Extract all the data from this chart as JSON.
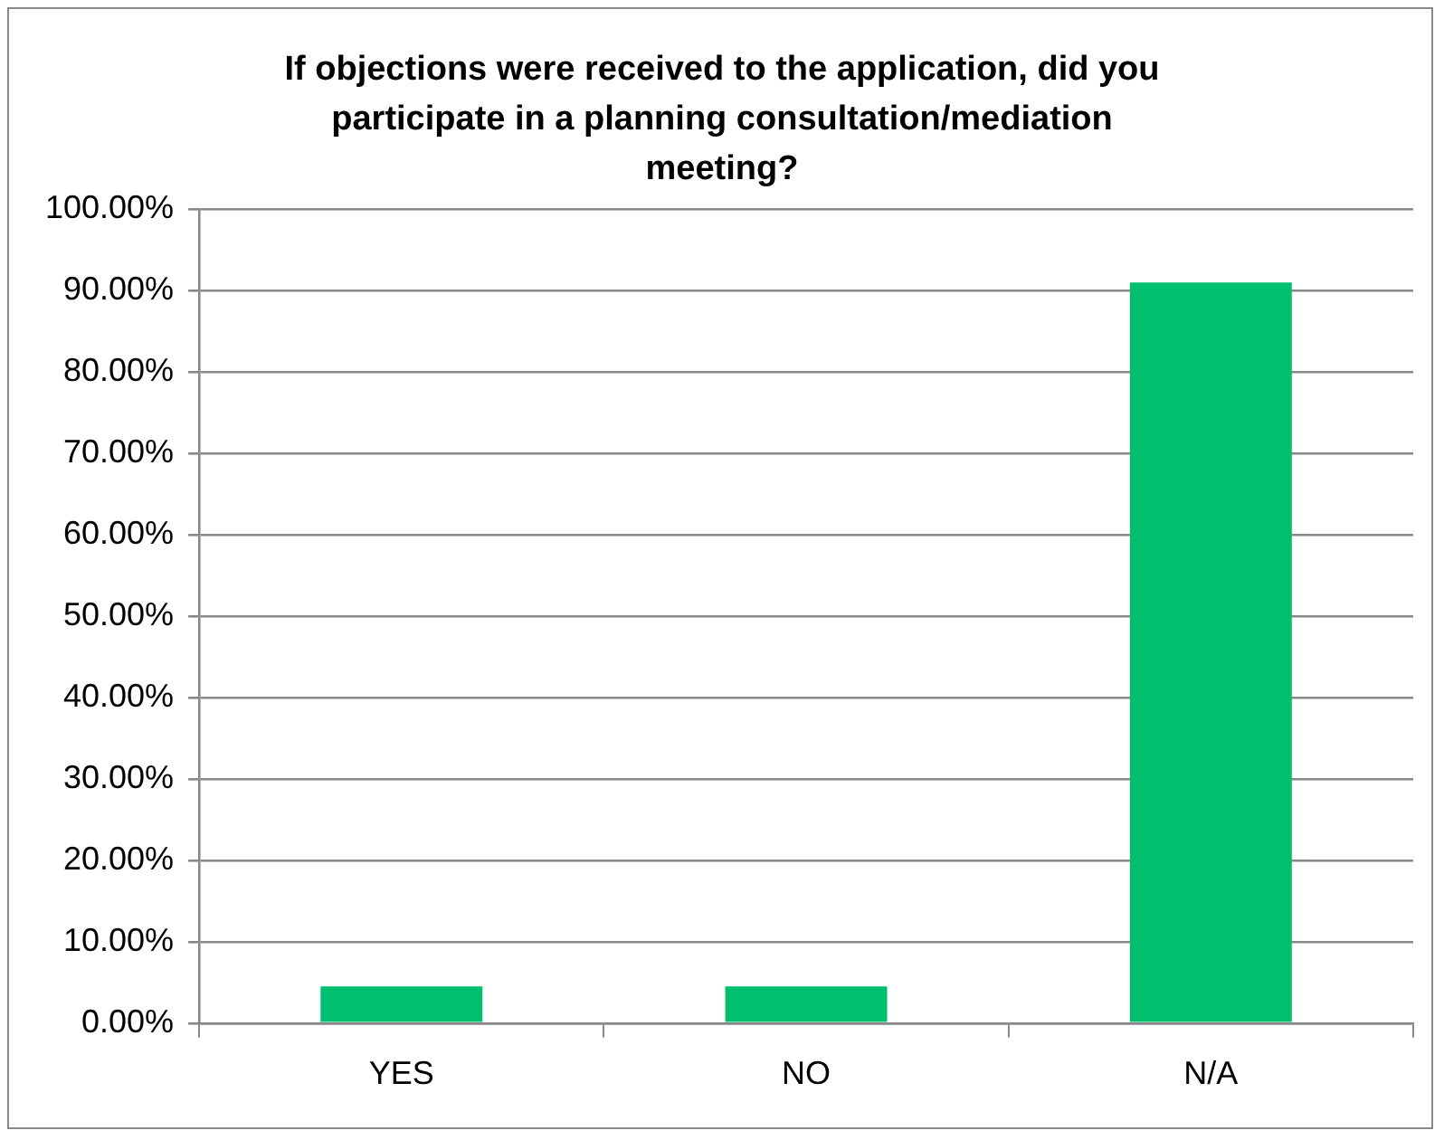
{
  "chart_data": {
    "type": "bar",
    "title": "If objections were received to the application, did you participate in a planning consultation/mediation meeting?",
    "categories": [
      "YES",
      "NO",
      "N/A"
    ],
    "values": [
      4.5,
      4.5,
      91
    ],
    "color": "#00bf6f",
    "ylim": [
      0,
      100
    ],
    "yticks": [
      {
        "value": 0,
        "label": "0.00%"
      },
      {
        "value": 10,
        "label": "10.00%"
      },
      {
        "value": 20,
        "label": "20.00%"
      },
      {
        "value": 30,
        "label": "30.00%"
      },
      {
        "value": 40,
        "label": "40.00%"
      },
      {
        "value": 50,
        "label": "50.00%"
      },
      {
        "value": 60,
        "label": "60.00%"
      },
      {
        "value": 70,
        "label": "70.00%"
      },
      {
        "value": 80,
        "label": "80.00%"
      },
      {
        "value": 90,
        "label": "90.00%"
      },
      {
        "value": 100,
        "label": "100.00%"
      }
    ],
    "grid": "y",
    "legend": false
  }
}
